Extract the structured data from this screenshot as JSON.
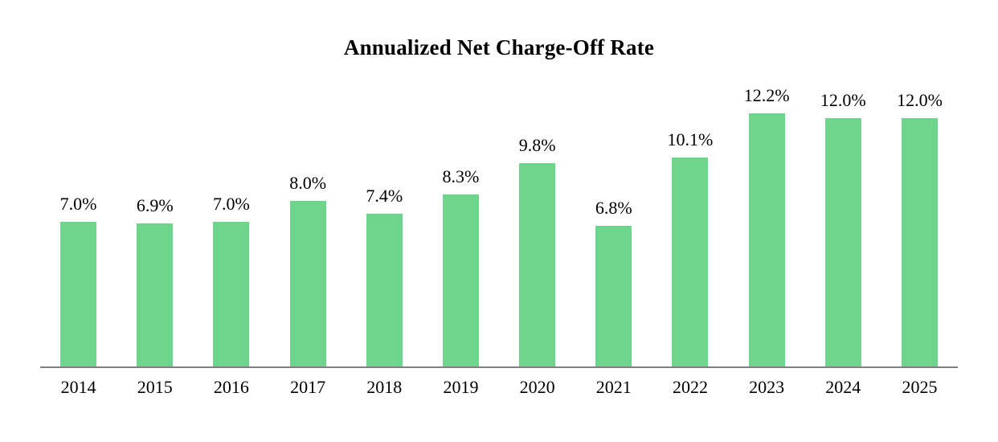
{
  "chart_data": {
    "type": "bar",
    "title": "Annualized Net Charge-Off Rate",
    "categories": [
      "2014",
      "2015",
      "2016",
      "2017",
      "2018",
      "2019",
      "2020",
      "2021",
      "2022",
      "2023",
      "2024",
      "2025"
    ],
    "values": [
      7.0,
      6.9,
      7.0,
      8.0,
      7.4,
      8.3,
      9.8,
      6.8,
      10.1,
      12.2,
      12.0,
      12.0
    ],
    "value_labels": [
      "7.0%",
      "6.9%",
      "7.0%",
      "8.0%",
      "7.4%",
      "8.3%",
      "9.8%",
      "6.8%",
      "10.1%",
      "12.2%",
      "12.0%",
      "12.0%"
    ],
    "xlabel": "",
    "ylabel": "",
    "ylim": [
      0,
      13
    ],
    "grid": false,
    "legend_position": "none",
    "bar_color": "#6DD68C",
    "axis_line_color": "#808080",
    "text_color": "#000000"
  }
}
